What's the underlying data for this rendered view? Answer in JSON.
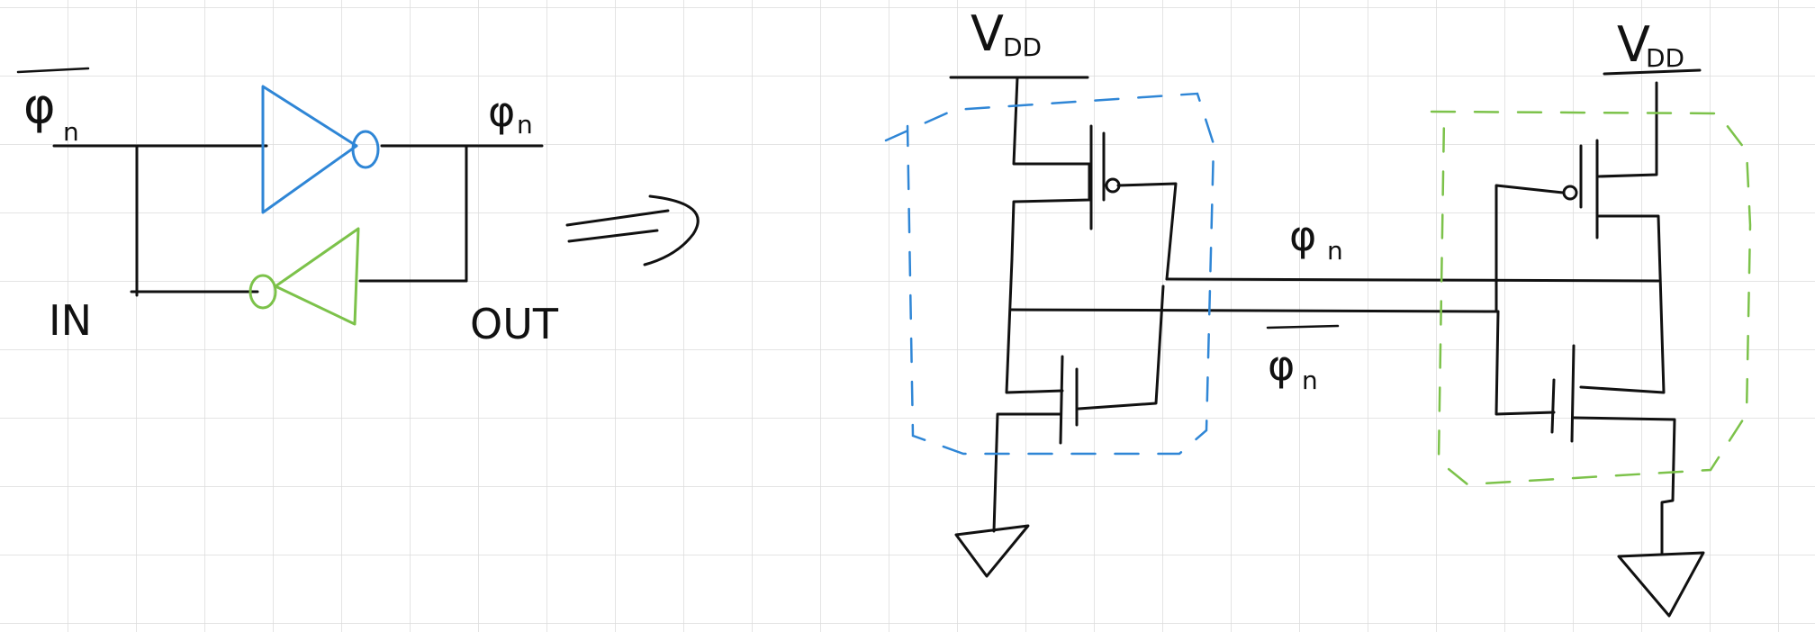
{
  "colors": {
    "background": "#ffffff",
    "grid": "#dcdcdc",
    "ink": "#111111",
    "blue_inverter": "#2f86d6",
    "green_inverter": "#7cc24a"
  },
  "left_diagram": {
    "input_label_base": "φ",
    "input_label_sub": "n",
    "output_label_base": "φ",
    "output_label_sub": "n",
    "in_label": "IN",
    "out_label": "OUT"
  },
  "right_diagram": {
    "vdd_left_base": "V",
    "vdd_left_sub": "DD",
    "vdd_right_base": "V",
    "vdd_right_sub": "DD",
    "upper_node_base": "φ",
    "upper_node_sub": "n",
    "lower_node_base": "φ",
    "lower_node_sub": "n"
  }
}
